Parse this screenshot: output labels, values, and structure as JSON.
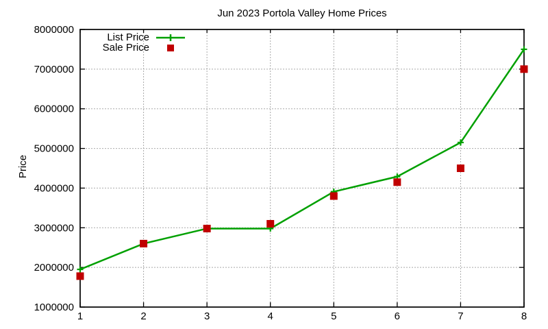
{
  "chart_data": {
    "type": "line",
    "title": "Jun 2023 Portola Valley Home Prices",
    "xlabel": "",
    "ylabel": "Price",
    "x": [
      1,
      2,
      3,
      4,
      5,
      6,
      7,
      8
    ],
    "series": [
      {
        "name": "List Price",
        "style": "line-with-plus-markers",
        "color": "#00a000",
        "values": [
          1950000,
          2600000,
          2980000,
          2980000,
          3910000,
          4290000,
          5150000,
          7500000
        ]
      },
      {
        "name": "Sale Price",
        "style": "square-points",
        "color": "#c00000",
        "values": [
          1780000,
          2600000,
          2980000,
          3100000,
          3800000,
          4150000,
          4500000,
          7000000
        ]
      }
    ],
    "xlim": [
      1,
      8
    ],
    "ylim": [
      1000000,
      8000000
    ],
    "xticks": [
      1,
      2,
      3,
      4,
      5,
      6,
      7,
      8
    ],
    "yticks": [
      1000000,
      2000000,
      3000000,
      4000000,
      5000000,
      6000000,
      7000000,
      8000000
    ],
    "grid": true,
    "grid_style": "dashed",
    "grid_color": "#a9a9a9",
    "axis_color": "#000000",
    "text_color": "#000000",
    "legend_position": "top-left-inside",
    "background": "#ffffff"
  }
}
